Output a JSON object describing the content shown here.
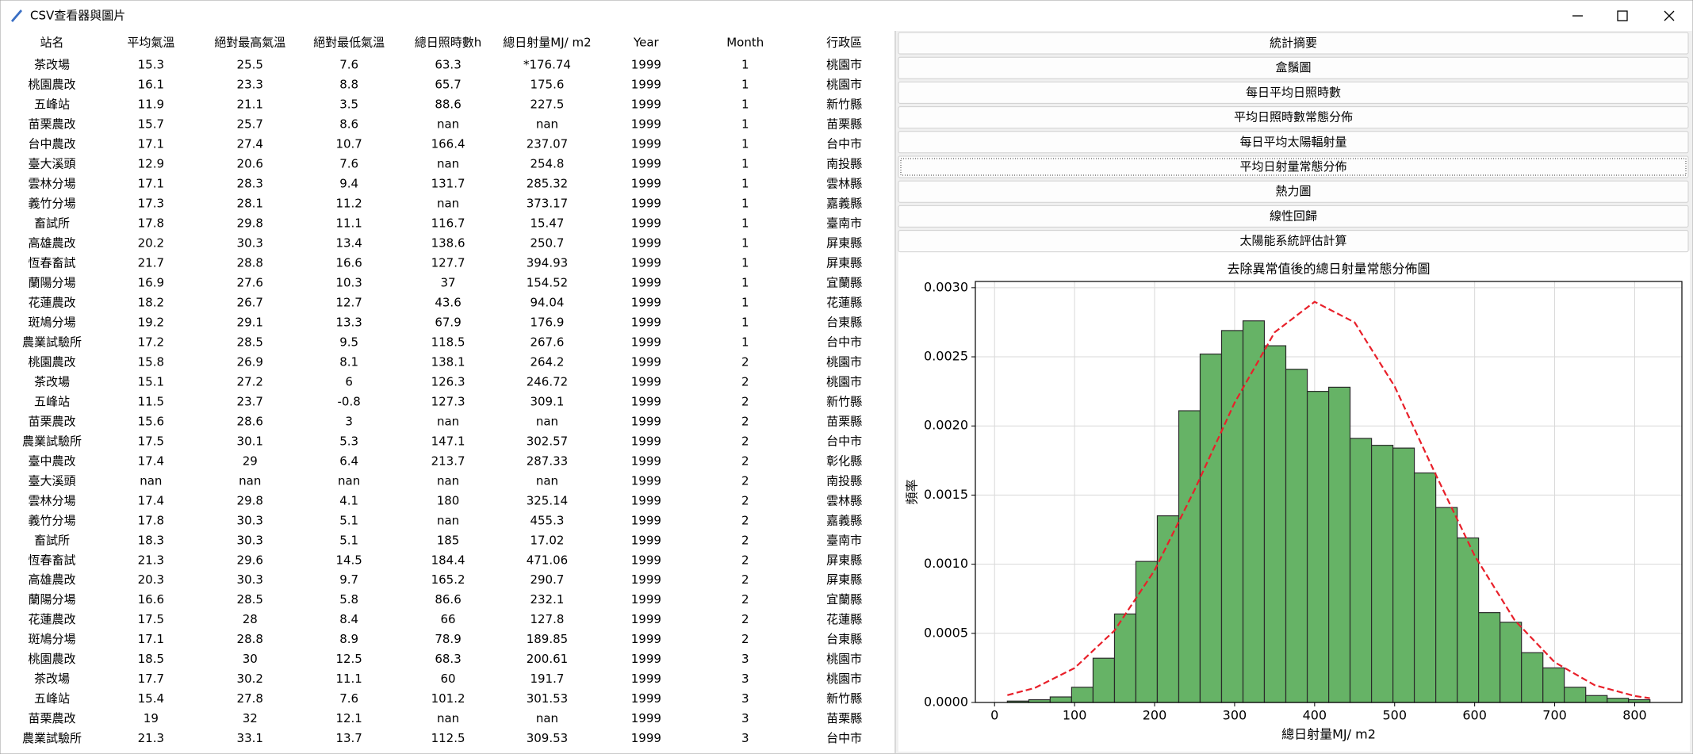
{
  "window": {
    "title": "CSV查看器與圖片"
  },
  "table": {
    "headers": [
      "站名",
      "平均氣溫",
      "絕對最高氣溫",
      "絕對最低氣溫",
      "總日照時數h",
      "總日射量MJ/ m2",
      "Year",
      "Month",
      "行政區"
    ],
    "rows": [
      [
        "茶改場",
        "15.3",
        "25.5",
        "7.6",
        "63.3",
        "*176.74",
        "1999",
        "1",
        "桃園市"
      ],
      [
        "桃園農改",
        "16.1",
        "23.3",
        "8.8",
        "65.7",
        "175.6",
        "1999",
        "1",
        "桃園市"
      ],
      [
        "五峰站",
        "11.9",
        "21.1",
        "3.5",
        "88.6",
        "227.5",
        "1999",
        "1",
        "新竹縣"
      ],
      [
        "苗栗農改",
        "15.7",
        "25.7",
        "8.6",
        "nan",
        "nan",
        "1999",
        "1",
        "苗栗縣"
      ],
      [
        "台中農改",
        "17.1",
        "27.4",
        "10.7",
        "166.4",
        "237.07",
        "1999",
        "1",
        "台中市"
      ],
      [
        "臺大溪頭",
        "12.9",
        "20.6",
        "7.6",
        "nan",
        "254.8",
        "1999",
        "1",
        "南投縣"
      ],
      [
        "雲林分場",
        "17.1",
        "28.3",
        "9.4",
        "131.7",
        "285.32",
        "1999",
        "1",
        "雲林縣"
      ],
      [
        "義竹分場",
        "17.3",
        "28.1",
        "11.2",
        "nan",
        "373.17",
        "1999",
        "1",
        "嘉義縣"
      ],
      [
        "畜試所",
        "17.8",
        "29.8",
        "11.1",
        "116.7",
        "15.47",
        "1999",
        "1",
        "臺南市"
      ],
      [
        "高雄農改",
        "20.2",
        "30.3",
        "13.4",
        "138.6",
        "250.7",
        "1999",
        "1",
        "屏東縣"
      ],
      [
        "恆春畜試",
        "21.7",
        "28.8",
        "16.6",
        "127.7",
        "394.93",
        "1999",
        "1",
        "屏東縣"
      ],
      [
        "蘭陽分場",
        "16.9",
        "27.6",
        "10.3",
        "37",
        "154.52",
        "1999",
        "1",
        "宜蘭縣"
      ],
      [
        "花蓮農改",
        "18.2",
        "26.7",
        "12.7",
        "43.6",
        "94.04",
        "1999",
        "1",
        "花蓮縣"
      ],
      [
        "斑鳩分場",
        "19.2",
        "29.1",
        "13.3",
        "67.9",
        "176.9",
        "1999",
        "1",
        "台東縣"
      ],
      [
        "農業試驗所",
        "17.2",
        "28.5",
        "9.5",
        "118.5",
        "267.6",
        "1999",
        "1",
        "台中市"
      ],
      [
        "桃園農改",
        "15.8",
        "26.9",
        "8.1",
        "138.1",
        "264.2",
        "1999",
        "2",
        "桃園市"
      ],
      [
        "茶改場",
        "15.1",
        "27.2",
        "6",
        "126.3",
        "246.72",
        "1999",
        "2",
        "桃園市"
      ],
      [
        "五峰站",
        "11.5",
        "23.7",
        "-0.8",
        "127.3",
        "309.1",
        "1999",
        "2",
        "新竹縣"
      ],
      [
        "苗栗農改",
        "15.6",
        "28.6",
        "3",
        "nan",
        "nan",
        "1999",
        "2",
        "苗栗縣"
      ],
      [
        "農業試驗所",
        "17.5",
        "30.1",
        "5.3",
        "147.1",
        "302.57",
        "1999",
        "2",
        "台中市"
      ],
      [
        "臺中農改",
        "17.4",
        "29",
        "6.4",
        "213.7",
        "287.33",
        "1999",
        "2",
        "彰化縣"
      ],
      [
        "臺大溪頭",
        "nan",
        "nan",
        "nan",
        "nan",
        "nan",
        "1999",
        "2",
        "南投縣"
      ],
      [
        "雲林分場",
        "17.4",
        "29.8",
        "4.1",
        "180",
        "325.14",
        "1999",
        "2",
        "雲林縣"
      ],
      [
        "義竹分場",
        "17.8",
        "30.3",
        "5.1",
        "nan",
        "455.3",
        "1999",
        "2",
        "嘉義縣"
      ],
      [
        "畜試所",
        "18.3",
        "30.3",
        "5.1",
        "185",
        "17.02",
        "1999",
        "2",
        "臺南市"
      ],
      [
        "恆春畜試",
        "21.3",
        "29.6",
        "14.5",
        "184.4",
        "471.06",
        "1999",
        "2",
        "屏東縣"
      ],
      [
        "高雄農改",
        "20.3",
        "30.3",
        "9.7",
        "165.2",
        "290.7",
        "1999",
        "2",
        "屏東縣"
      ],
      [
        "蘭陽分場",
        "16.6",
        "28.5",
        "5.8",
        "86.6",
        "232.1",
        "1999",
        "2",
        "宜蘭縣"
      ],
      [
        "花蓮農改",
        "17.5",
        "28",
        "8.4",
        "66",
        "127.8",
        "1999",
        "2",
        "花蓮縣"
      ],
      [
        "斑鳩分場",
        "17.1",
        "28.8",
        "8.9",
        "78.9",
        "189.85",
        "1999",
        "2",
        "台東縣"
      ],
      [
        "桃園農改",
        "18.5",
        "30",
        "12.5",
        "68.3",
        "200.61",
        "1999",
        "3",
        "桃園市"
      ],
      [
        "茶改場",
        "17.7",
        "30.2",
        "11.1",
        "60",
        "191.7",
        "1999",
        "3",
        "桃園市"
      ],
      [
        "五峰站",
        "15.4",
        "27.8",
        "7.6",
        "101.2",
        "301.53",
        "1999",
        "3",
        "新竹縣"
      ],
      [
        "苗栗農改",
        "19",
        "32",
        "12.1",
        "nan",
        "nan",
        "1999",
        "3",
        "苗栗縣"
      ],
      [
        "農業試驗所",
        "21.3",
        "33.1",
        "13.7",
        "112.5",
        "309.53",
        "1999",
        "3",
        "台中市"
      ]
    ]
  },
  "buttons": [
    "統計摘要",
    "盒鬚圖",
    "每日平均日照時數",
    "平均日照時數常態分佈",
    "每日平均太陽輻射量",
    "平均日射量常態分佈",
    "熱力圖",
    "線性回歸",
    "太陽能系統評估計算"
  ],
  "chart_data": {
    "type": "histogram",
    "title": "去除異常值後的總日射量常態分佈圖",
    "x_label": "總日射量MJ/ m2",
    "y_label": "頻率",
    "bins": [
      16,
      42.8,
      69.5,
      96.3,
      123.1,
      149.9,
      176.6,
      203.4,
      230.2,
      256.9,
      283.7,
      310.5,
      337.2,
      364,
      390.8,
      417.6,
      444.3,
      471.1,
      497.9,
      524.6,
      551.4,
      578.2,
      604.9,
      631.7,
      658.5,
      685.3,
      712,
      738.8,
      765.6,
      792.3,
      819.1
    ],
    "values": [
      1e-05,
      2e-05,
      4e-05,
      0.00011,
      0.00032,
      0.00064,
      0.00102,
      0.00135,
      0.00211,
      0.00252,
      0.00269,
      0.00276,
      0.00258,
      0.00241,
      0.00225,
      0.00228,
      0.00191,
      0.00186,
      0.00184,
      0.00166,
      0.00141,
      0.00119,
      0.00065,
      0.00058,
      0.00036,
      0.00025,
      0.00011,
      5e-05,
      3e-05,
      2e-05
    ],
    "color": "#66b366",
    "edgecolor": "#2a2a2a",
    "curve": {
      "x": [
        16,
        50,
        100,
        150,
        200,
        250,
        300,
        350,
        400,
        450,
        500,
        550,
        600,
        650,
        700,
        750,
        800,
        819
      ],
      "values": [
        5.3e-05,
        0.000104,
        0.000249,
        0.000521,
        0.000956,
        0.001538,
        0.002168,
        0.002677,
        0.002898,
        0.002749,
        0.002286,
        0.001665,
        0.001062,
        0.000595,
        0.000291,
        0.000125,
        4.7e-05,
        3.1e-05
      ],
      "color": "#e8202a",
      "dashed": true
    },
    "xlim": [
      -24,
      859
    ],
    "ylim": [
      0,
      0.003045
    ],
    "xticks": [
      0,
      100,
      200,
      300,
      400,
      500,
      600,
      700,
      800
    ],
    "yticks": [
      {
        "value": 0,
        "label": "0.0000"
      },
      {
        "value": 0.0005,
        "label": "0.0005"
      },
      {
        "value": 0.001,
        "label": "0.0010"
      },
      {
        "value": 0.0015,
        "label": "0.0015"
      },
      {
        "value": 0.002,
        "label": "0.0020"
      },
      {
        "value": 0.0025,
        "label": "0.0025"
      },
      {
        "value": 0.003,
        "label": "0.0030"
      }
    ],
    "grid": true
  }
}
